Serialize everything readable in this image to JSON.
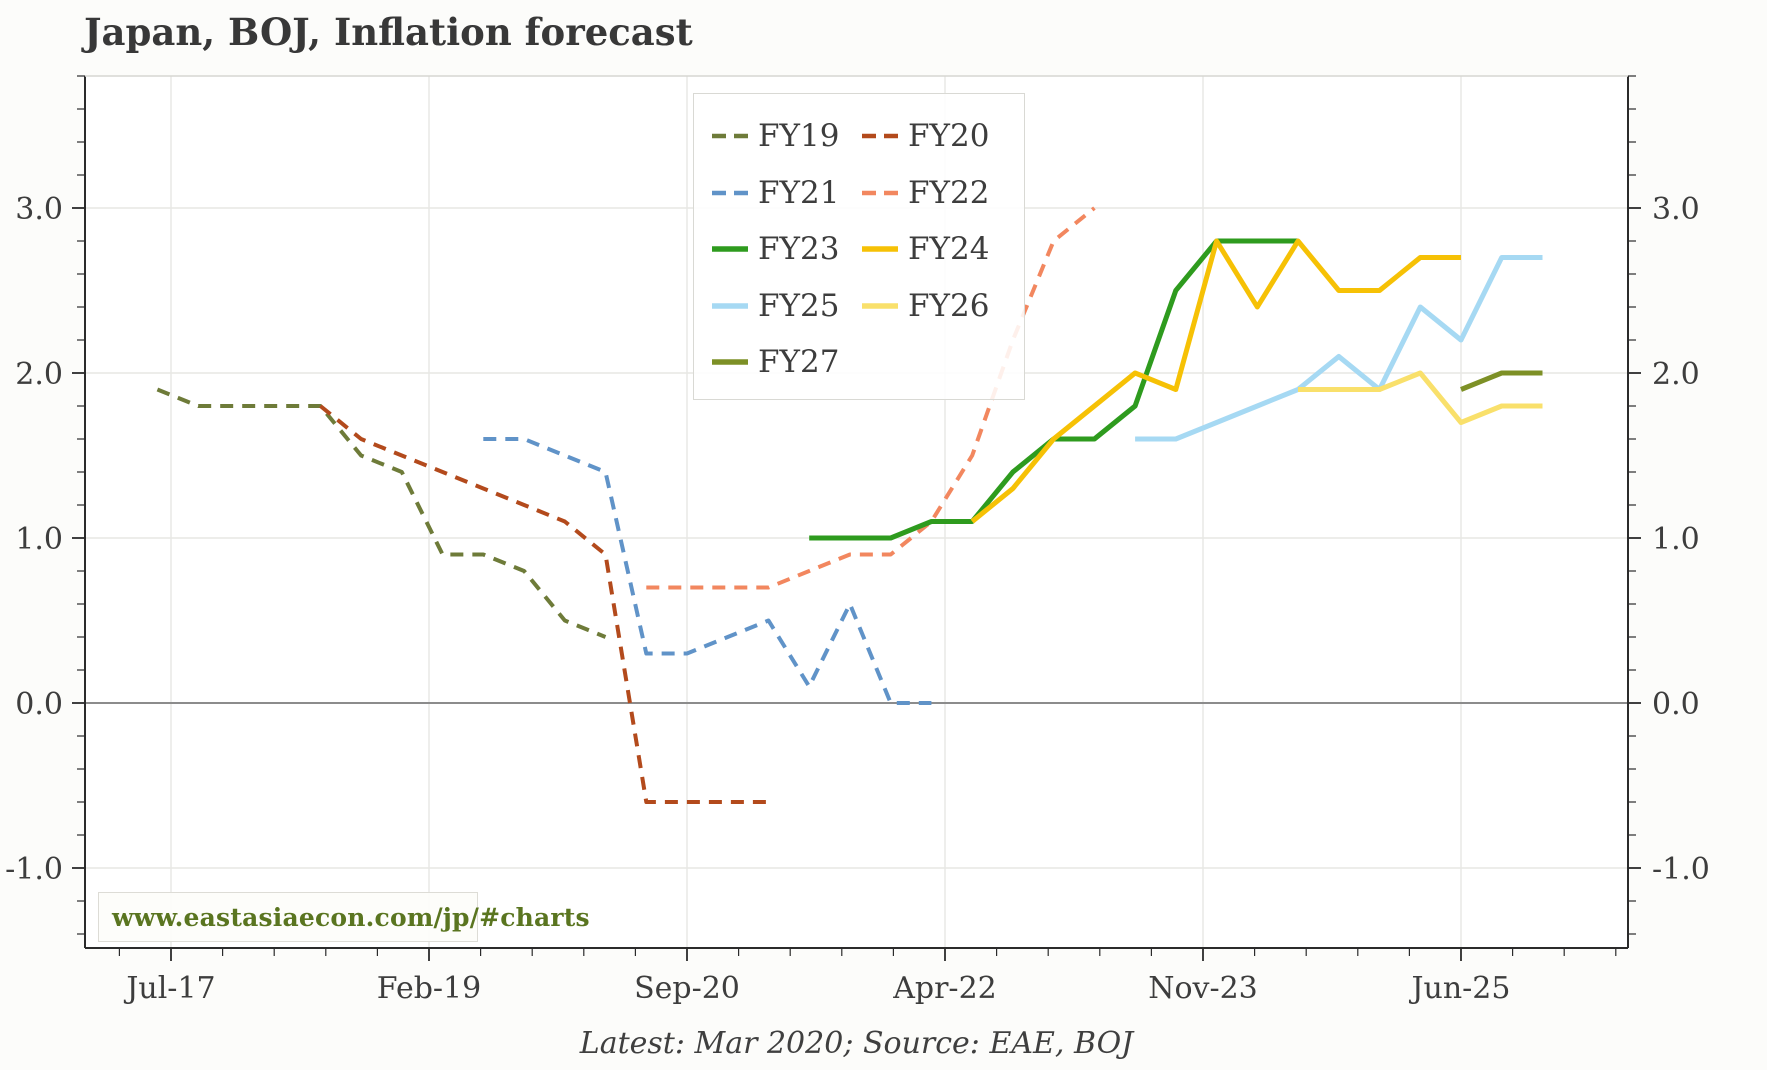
{
  "title": "Japan, BOJ, Inflation forecast",
  "watermark": "www.eastasiaecon.com/jp/#charts",
  "footer": "Latest: Mar 2020; Source: EAE, BOJ",
  "colors": {
    "page_background": "#fcfcfa",
    "plot_background": "#ffffff",
    "axis": "#2b2b2b",
    "top_spine": "#d6d6d2",
    "grid": "#e7e7e4",
    "zero_line": "#8c8c8c",
    "text": "#3d3d3d",
    "title_text": "#383838",
    "watermark_text": "#5a7520",
    "legend_border": "#d9d9d4"
  },
  "legend": {
    "position": "upper-center",
    "columns": 2,
    "items": [
      {
        "label": "FY19",
        "color": "#6e7b39",
        "dashed": true
      },
      {
        "label": "FY20",
        "color": "#b34a1c",
        "dashed": true
      },
      {
        "label": "FY21",
        "color": "#6093c8",
        "dashed": true
      },
      {
        "label": "FY22",
        "color": "#f2875f",
        "dashed": true
      },
      {
        "label": "FY23",
        "color": "#2e9b1e",
        "dashed": false
      },
      {
        "label": "FY24",
        "color": "#f6c105",
        "dashed": false
      },
      {
        "label": "FY25",
        "color": "#a6d9f3",
        "dashed": false
      },
      {
        "label": "FY26",
        "color": "#f9e06b",
        "dashed": false
      },
      {
        "label": "FY27",
        "color": "#7d9026",
        "dashed": false
      }
    ]
  },
  "chart_data": {
    "type": "line",
    "title": "Japan, BOJ, Inflation forecast",
    "xlabel": "",
    "ylabel": "",
    "grid": true,
    "x_axis": {
      "tick_labels": [
        "Jul-17",
        "Feb-19",
        "Sep-20",
        "Apr-22",
        "Nov-23",
        "Jun-25"
      ],
      "tick_interval_months": 19,
      "minor_intervals_per_major": 5,
      "range_months": [
        "Jan-17",
        "Jul-26"
      ]
    },
    "y_axis": {
      "tick_labels": [
        "-1.0",
        "0.0",
        "1.0",
        "2.0",
        "3.0"
      ],
      "ticks": [
        -1.0,
        0.0,
        1.0,
        2.0,
        3.0
      ],
      "minor_step": 0.2,
      "ylim": [
        -1.49,
        3.81
      ],
      "zero_line": true,
      "mirrored_right_axis": true
    },
    "series": [
      {
        "name": "FY19",
        "color": "#6e7b39",
        "dashed": true,
        "points": [
          [
            "Jun-17",
            1.9
          ],
          [
            "Sep-17",
            1.8
          ],
          [
            "Dec-17",
            1.8
          ],
          [
            "Mar-18",
            1.8
          ],
          [
            "Jun-18",
            1.8
          ],
          [
            "Sep-18",
            1.5
          ],
          [
            "Dec-18",
            1.4
          ],
          [
            "Mar-19",
            0.9
          ],
          [
            "Jun-19",
            0.9
          ],
          [
            "Sep-19",
            0.8
          ],
          [
            "Dec-19",
            0.5
          ],
          [
            "Mar-20",
            0.4
          ]
        ]
      },
      {
        "name": "FY20",
        "color": "#b34a1c",
        "dashed": true,
        "points": [
          [
            "Jun-18",
            1.8
          ],
          [
            "Sep-18",
            1.6
          ],
          [
            "Dec-18",
            1.5
          ],
          [
            "Mar-19",
            1.4
          ],
          [
            "Jun-19",
            1.3
          ],
          [
            "Sep-19",
            1.2
          ],
          [
            "Dec-19",
            1.1
          ],
          [
            "Mar-20",
            0.9
          ],
          [
            "Jun-20",
            -0.6
          ],
          [
            "Sep-20",
            -0.6
          ],
          [
            "Dec-20",
            -0.6
          ],
          [
            "Mar-21",
            -0.6
          ]
        ]
      },
      {
        "name": "FY21",
        "color": "#6093c8",
        "dashed": true,
        "points": [
          [
            "Jun-19",
            1.6
          ],
          [
            "Sep-19",
            1.6
          ],
          [
            "Dec-19",
            1.5
          ],
          [
            "Mar-20",
            1.4
          ],
          [
            "Jun-20",
            0.3
          ],
          [
            "Sep-20",
            0.3
          ],
          [
            "Dec-20",
            0.4
          ],
          [
            "Mar-21",
            0.5
          ],
          [
            "Jun-21",
            0.1
          ],
          [
            "Sep-21",
            0.6
          ],
          [
            "Dec-21",
            0.0
          ],
          [
            "Mar-22",
            0.0
          ]
        ]
      },
      {
        "name": "FY22",
        "color": "#f2875f",
        "dashed": true,
        "points": [
          [
            "Jun-20",
            0.7
          ],
          [
            "Sep-20",
            0.7
          ],
          [
            "Dec-20",
            0.7
          ],
          [
            "Mar-21",
            0.7
          ],
          [
            "Jun-21",
            0.8
          ],
          [
            "Sep-21",
            0.9
          ],
          [
            "Dec-21",
            0.9
          ],
          [
            "Mar-22",
            1.1
          ],
          [
            "Jun-22",
            1.5
          ],
          [
            "Sep-22",
            2.2
          ],
          [
            "Dec-22",
            2.8
          ],
          [
            "Mar-23",
            3.0
          ]
        ]
      },
      {
        "name": "FY23",
        "color": "#2e9b1e",
        "dashed": false,
        "points": [
          [
            "Jun-21",
            1.0
          ],
          [
            "Sep-21",
            1.0
          ],
          [
            "Dec-21",
            1.0
          ],
          [
            "Mar-22",
            1.1
          ],
          [
            "Jun-22",
            1.1
          ],
          [
            "Sep-22",
            1.4
          ],
          [
            "Dec-22",
            1.6
          ],
          [
            "Mar-23",
            1.6
          ],
          [
            "Jun-23",
            1.8
          ],
          [
            "Sep-23",
            2.5
          ],
          [
            "Dec-23",
            2.8
          ],
          [
            "Mar-24",
            2.8
          ],
          [
            "Jun-24",
            2.8
          ]
        ]
      },
      {
        "name": "FY24",
        "color": "#f6c105",
        "dashed": false,
        "points": [
          [
            "Jun-22",
            1.1
          ],
          [
            "Sep-22",
            1.3
          ],
          [
            "Dec-22",
            1.6
          ],
          [
            "Mar-23",
            1.8
          ],
          [
            "Jun-23",
            2.0
          ],
          [
            "Sep-23",
            1.9
          ],
          [
            "Dec-23",
            2.8
          ],
          [
            "Mar-24",
            2.4
          ],
          [
            "Jun-24",
            2.8
          ],
          [
            "Sep-24",
            2.5
          ],
          [
            "Dec-24",
            2.5
          ],
          [
            "Mar-25",
            2.7
          ],
          [
            "Jun-25",
            2.7
          ]
        ]
      },
      {
        "name": "FY25",
        "color": "#a6d9f3",
        "dashed": false,
        "points": [
          [
            "Jun-23",
            1.6
          ],
          [
            "Sep-23",
            1.6
          ],
          [
            "Dec-23",
            1.7
          ],
          [
            "Mar-24",
            1.8
          ],
          [
            "Jun-24",
            1.9
          ],
          [
            "Sep-24",
            2.1
          ],
          [
            "Dec-24",
            1.9
          ],
          [
            "Mar-25",
            2.4
          ],
          [
            "Jun-25",
            2.2
          ],
          [
            "Sep-25",
            2.7
          ],
          [
            "Dec-25",
            2.7
          ]
        ]
      },
      {
        "name": "FY26",
        "color": "#f9e06b",
        "dashed": false,
        "points": [
          [
            "Jun-24",
            1.9
          ],
          [
            "Sep-24",
            1.9
          ],
          [
            "Dec-24",
            1.9
          ],
          [
            "Mar-25",
            2.0
          ],
          [
            "Jun-25",
            1.7
          ],
          [
            "Sep-25",
            1.8
          ],
          [
            "Dec-25",
            1.8
          ]
        ]
      },
      {
        "name": "FY27",
        "color": "#7d9026",
        "dashed": false,
        "points": [
          [
            "Jun-25",
            1.9
          ],
          [
            "Sep-25",
            2.0
          ],
          [
            "Dec-25",
            2.0
          ]
        ]
      }
    ]
  }
}
